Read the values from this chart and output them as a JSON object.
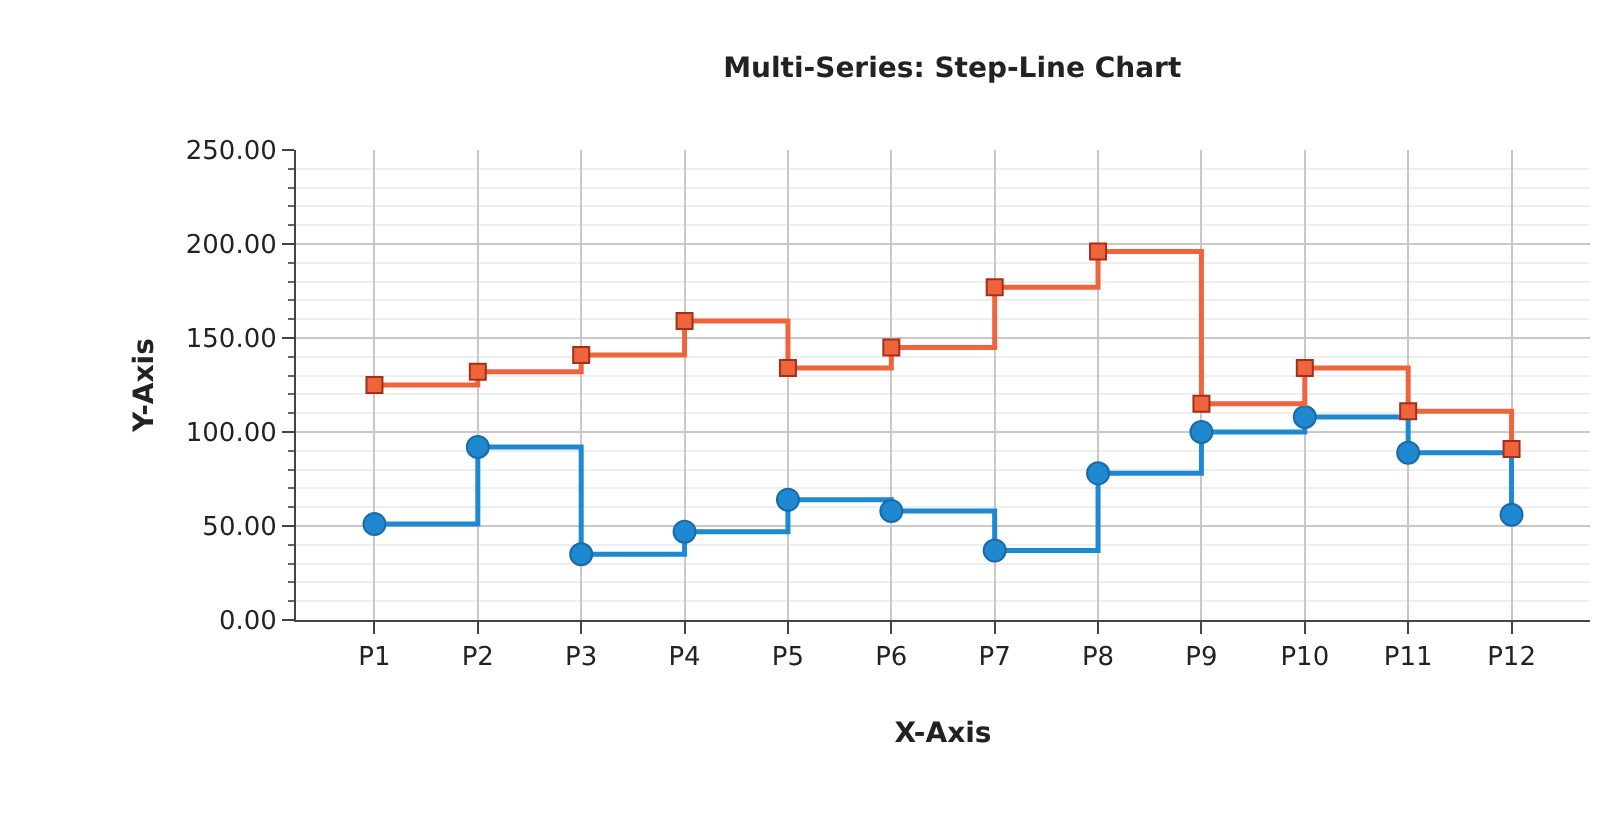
{
  "chart_data": {
    "type": "step",
    "title": "Multi-Series: Step-Line Chart",
    "xlabel": "X-Axis",
    "ylabel": "Y-Axis",
    "categories": [
      "P1",
      "P2",
      "P3",
      "P4",
      "P5",
      "P6",
      "P7",
      "P8",
      "P9",
      "P10",
      "P11",
      "P12"
    ],
    "series": [
      {
        "color": "#1e88d0",
        "marker": "circle",
        "values": [
          51,
          92,
          35,
          47,
          64,
          58,
          37,
          78,
          100,
          108,
          89,
          56
        ]
      },
      {
        "color": "#f0643c",
        "marker": "square",
        "values": [
          125,
          132,
          141,
          159,
          134,
          145,
          177,
          196,
          115,
          134,
          111,
          91
        ]
      }
    ],
    "ylim": [
      0,
      250
    ],
    "yticks": [
      {
        "value": 0,
        "label": "0.00"
      },
      {
        "value": 50,
        "label": "50.00"
      },
      {
        "value": 100,
        "label": "100.00"
      },
      {
        "value": 150,
        "label": "150.00"
      },
      {
        "value": 200,
        "label": "200.00"
      },
      {
        "value": 250,
        "label": "250.00"
      }
    ],
    "grid": true,
    "line_style": "solid"
  }
}
